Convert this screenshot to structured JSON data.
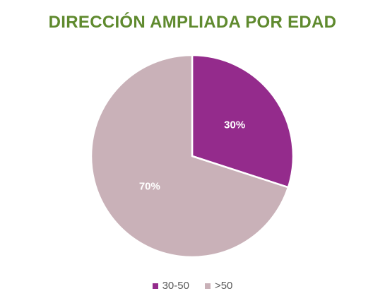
{
  "colors": {
    "title": "#5f8a2e",
    "background": "#ffffff",
    "slice_border": "#ffffff"
  },
  "chart_data": {
    "type": "pie",
    "title": "DIRECCIÓN AMPLIADA POR EDAD",
    "legend_position": "bottom",
    "start_angle_deg": 0,
    "direction": "clockwise",
    "slices": [
      {
        "label": "30-50",
        "value": 30,
        "data_label": "30%",
        "color": "#942b8c"
      },
      {
        "label": ">50",
        "value": 70,
        "data_label": "70%",
        "color": "#c9b1b8"
      }
    ]
  }
}
